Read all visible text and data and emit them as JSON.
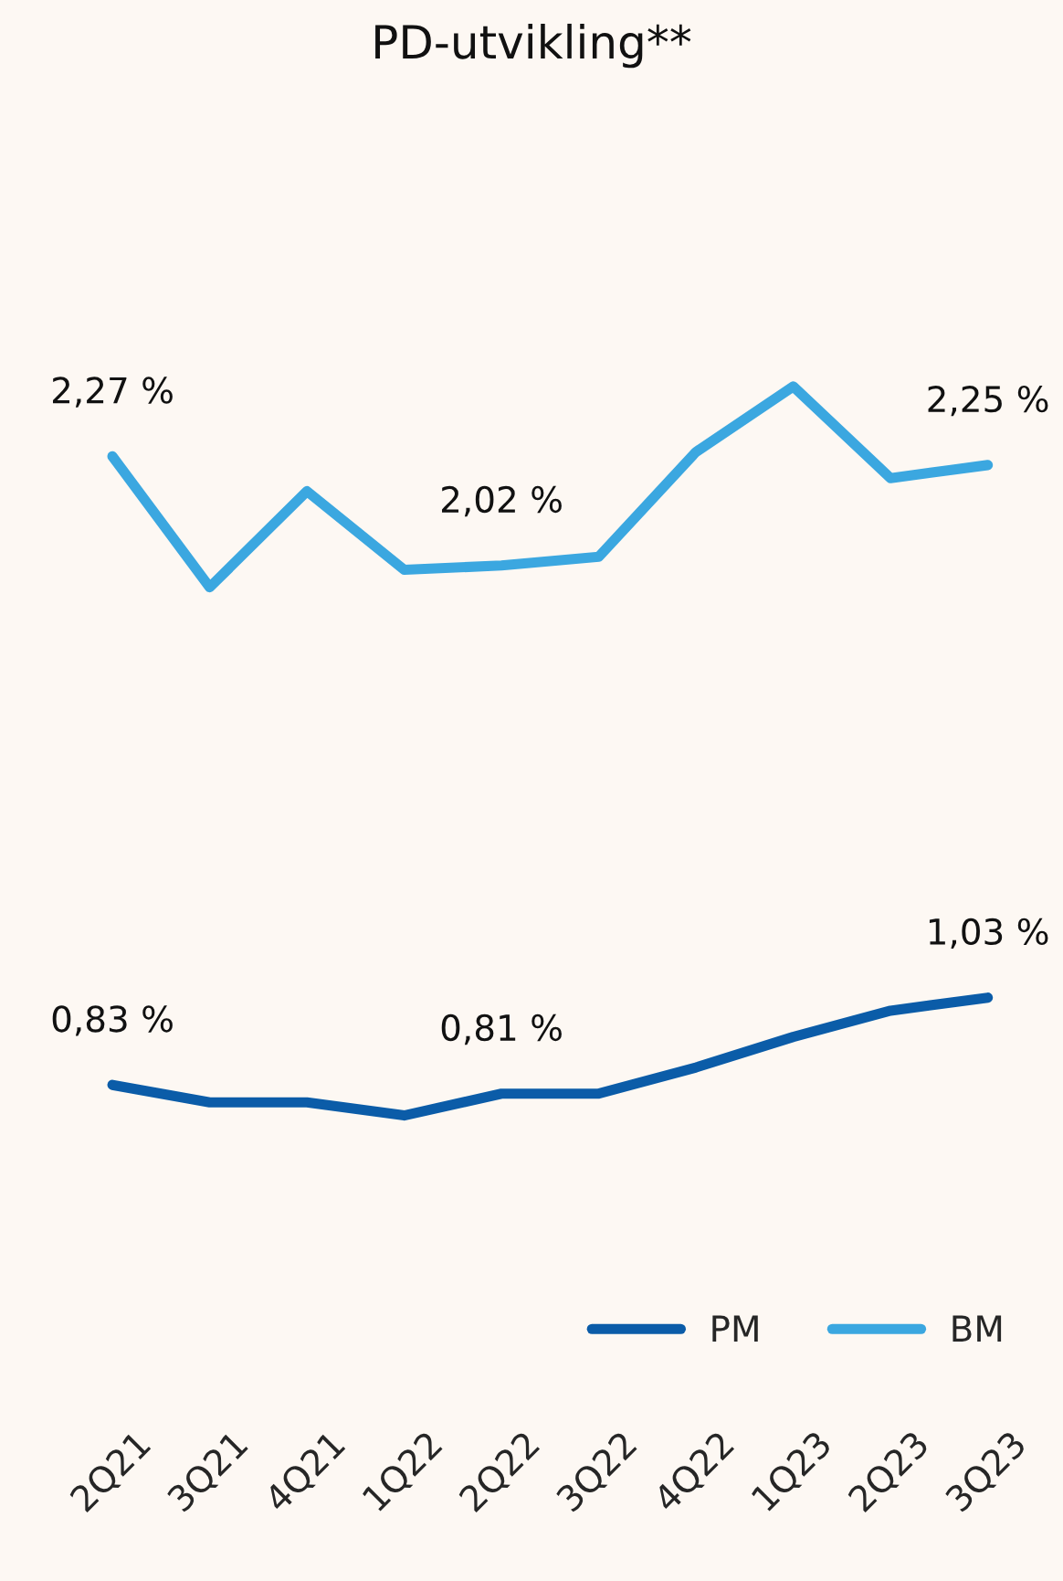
{
  "chart_data": {
    "type": "line",
    "title": "PD-utvikling**",
    "categories": [
      "2Q21",
      "3Q21",
      "4Q21",
      "1Q22",
      "2Q22",
      "3Q22",
      "4Q22",
      "1Q23",
      "2Q23",
      "3Q23"
    ],
    "series": [
      {
        "name": "PM",
        "color": "#0b5ca8",
        "values": [
          0.83,
          0.79,
          0.79,
          0.76,
          0.81,
          0.81,
          0.87,
          0.94,
          1.0,
          1.03
        ],
        "value_labels": [
          "0,83 %",
          null,
          null,
          null,
          "0,81 %",
          null,
          null,
          null,
          null,
          "1,03 %"
        ]
      },
      {
        "name": "BM",
        "color": "#3ba7e0",
        "values": [
          2.27,
          1.97,
          2.19,
          2.01,
          2.02,
          2.04,
          2.28,
          2.43,
          2.22,
          2.25
        ],
        "value_labels": [
          "2,27 %",
          null,
          null,
          null,
          "2,02 %",
          null,
          null,
          null,
          null,
          "2,25 %"
        ]
      }
    ],
    "tick_labels": "x",
    "grid": false,
    "legend": "bottom right",
    "marker": "none",
    "line_style": "solid"
  }
}
